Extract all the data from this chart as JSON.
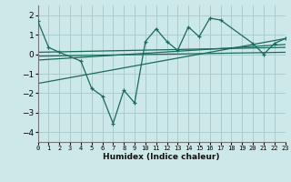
{
  "xlabel": "Humidex (Indice chaleur)",
  "bg_color": "#cce8e8",
  "grid_color": "#aacccc",
  "line_color": "#1a6b5a",
  "xlim": [
    0,
    23
  ],
  "ylim": [
    -4.5,
    2.5
  ],
  "yticks": [
    -4,
    -3,
    -2,
    -1,
    0,
    1,
    2
  ],
  "xticks": [
    0,
    1,
    2,
    3,
    4,
    5,
    6,
    7,
    8,
    9,
    10,
    11,
    12,
    13,
    14,
    15,
    16,
    17,
    18,
    19,
    20,
    21,
    22,
    23
  ],
  "line1_x": [
    0,
    1,
    2,
    4,
    5,
    6,
    7,
    8,
    9,
    10,
    11,
    12,
    13,
    14,
    15,
    16,
    17,
    20,
    21,
    22,
    23
  ],
  "line1_y": [
    1.7,
    0.35,
    0.1,
    -0.35,
    -1.75,
    -2.15,
    -3.55,
    -1.85,
    -2.5,
    0.65,
    1.3,
    0.65,
    0.2,
    1.4,
    0.9,
    1.85,
    1.75,
    0.55,
    0.0,
    0.55,
    0.8
  ],
  "line2_x": [
    0,
    23
  ],
  "line2_y": [
    0.1,
    0.35
  ],
  "line3_x": [
    0,
    23
  ],
  "line3_y": [
    -0.1,
    0.1
  ],
  "line4_x": [
    0,
    23
  ],
  "line4_y": [
    -0.3,
    0.5
  ],
  "line5_x": [
    0,
    23
  ],
  "line5_y": [
    -1.5,
    0.8
  ]
}
